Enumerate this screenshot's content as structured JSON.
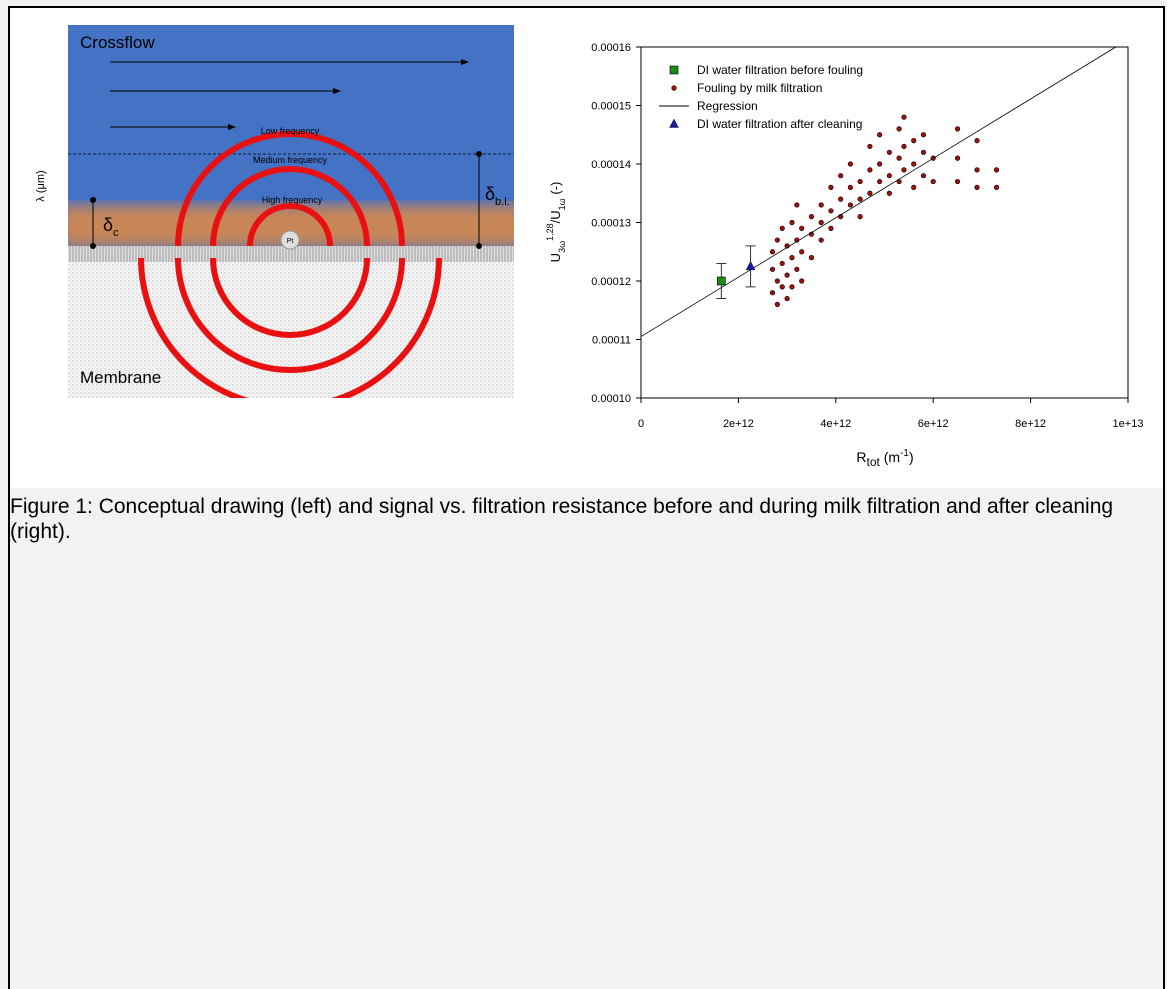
{
  "drawing": {
    "crossflow": "Crossflow",
    "low": "Low frequency",
    "medium": "Medium frequency",
    "high": "High frequency",
    "electrode": "Pt",
    "membrane": "Membrane",
    "lambda": "λ (μm)",
    "delta_c": {
      "symbol": "δ",
      "subscript": "c"
    },
    "delta_bl": {
      "symbol": "δ",
      "subscript": "b.l."
    }
  },
  "chart_data": {
    "type": "scatter",
    "ylabel": {
      "base": "U",
      "sub": "3ω",
      "sup": "1.28",
      "mid": "/U",
      "sub2": "1ω",
      "unit": " (-)"
    },
    "xlabel": {
      "base": "R",
      "sub": "tot",
      "unit": " (m",
      "sup": "-1",
      "end": ")"
    },
    "xlim": [
      0,
      10000000000000.0
    ],
    "ylim": [
      0.0001,
      0.00016
    ],
    "xticks": [
      0,
      {
        "value": 2000000000000.0,
        "label": "2e+12"
      },
      {
        "value": 4000000000000.0,
        "label": "4e+12"
      },
      {
        "value": 6000000000000.0,
        "label": "6e+12"
      },
      {
        "value": 8000000000000.0,
        "label": "8e+12"
      },
      {
        "value": 10000000000000.0,
        "label": "1e+13"
      }
    ],
    "yticks": [
      {
        "value": 0.0001,
        "label": "0.00010"
      },
      {
        "value": 0.00011,
        "label": "0.00011"
      },
      {
        "value": 0.00012,
        "label": "0.00012"
      },
      {
        "value": 0.00013,
        "label": "0.00013"
      },
      {
        "value": 0.00014,
        "label": "0.00014"
      },
      {
        "value": 0.00015,
        "label": "0.00015"
      },
      {
        "value": 0.00016,
        "label": "0.00016"
      }
    ],
    "series": [
      {
        "name": "DI water filtration before fouling",
        "color": "#1a8a1a",
        "marker": "square",
        "x": [
          1650000000000.0
        ],
        "values": [
          0.00012
        ],
        "errors": [
          3e-06
        ]
      },
      {
        "name": "Fouling by milk filtration",
        "color": "#a01010",
        "marker": "circle",
        "x": [
          2700000000000.0,
          2700000000000.0,
          2700000000000.0,
          2800000000000.0,
          2800000000000.0,
          2800000000000.0,
          2900000000000.0,
          2900000000000.0,
          2900000000000.0,
          3000000000000.0,
          3000000000000.0,
          3000000000000.0,
          3100000000000.0,
          3100000000000.0,
          3100000000000.0,
          3200000000000.0,
          3200000000000.0,
          3200000000000.0,
          3300000000000.0,
          3300000000000.0,
          3300000000000.0,
          3500000000000.0,
          3500000000000.0,
          3500000000000.0,
          3700000000000.0,
          3700000000000.0,
          3700000000000.0,
          3900000000000.0,
          3900000000000.0,
          3900000000000.0,
          4100000000000.0,
          4100000000000.0,
          4100000000000.0,
          4300000000000.0,
          4300000000000.0,
          4300000000000.0,
          4500000000000.0,
          4500000000000.0,
          4500000000000.0,
          4700000000000.0,
          4700000000000.0,
          4700000000000.0,
          4900000000000.0,
          4900000000000.0,
          4900000000000.0,
          5100000000000.0,
          5100000000000.0,
          5100000000000.0,
          5300000000000.0,
          5300000000000.0,
          5300000000000.0,
          5400000000000.0,
          5400000000000.0,
          5400000000000.0,
          5600000000000.0,
          5600000000000.0,
          5600000000000.0,
          5800000000000.0,
          5800000000000.0,
          5800000000000.0,
          6000000000000.0,
          6000000000000.0,
          6500000000000.0,
          6500000000000.0,
          6500000000000.0,
          6900000000000.0,
          6900000000000.0,
          6900000000000.0,
          7300000000000.0,
          7300000000000.0
        ],
        "values": [
          0.000118,
          0.000122,
          0.000125,
          0.00012,
          0.000127,
          0.000116,
          0.000123,
          0.000119,
          0.000129,
          0.000121,
          0.000126,
          0.000117,
          0.000124,
          0.00013,
          0.000119,
          0.000127,
          0.000122,
          0.000133,
          0.000125,
          0.000129,
          0.00012,
          0.000128,
          0.000131,
          0.000124,
          0.00013,
          0.000127,
          0.000133,
          0.000132,
          0.000136,
          0.000129,
          0.000134,
          0.000131,
          0.000138,
          0.000136,
          0.000133,
          0.00014,
          0.000137,
          0.000131,
          0.000134,
          0.000139,
          0.000135,
          0.000143,
          0.00014,
          0.000137,
          0.000145,
          0.000138,
          0.000142,
          0.000135,
          0.000141,
          0.000146,
          0.000137,
          0.000148,
          0.000139,
          0.000143,
          0.00014,
          0.000144,
          0.000136,
          0.000142,
          0.000138,
          0.000145,
          0.000141,
          0.000137,
          0.000146,
          0.000141,
          0.000137,
          0.000144,
          0.000139,
          0.000136,
          0.000139,
          0.000136
        ]
      },
      {
        "name": "Regression",
        "color": "#000000",
        "marker": "line",
        "x": [
          0,
          9750000000000.0
        ],
        "values": [
          0.0001105,
          0.00016
        ]
      },
      {
        "name": "DI water filtration after cleaning",
        "color": "#1a1aa0",
        "marker": "triangle",
        "x": [
          2250000000000.0
        ],
        "values": [
          0.0001225
        ],
        "errors": [
          3.5e-06
        ]
      }
    ]
  },
  "caption": "Figure 1: Conceptual drawing (left) and signal vs. filtration resistance before and during milk filtration and after cleaning (right)."
}
